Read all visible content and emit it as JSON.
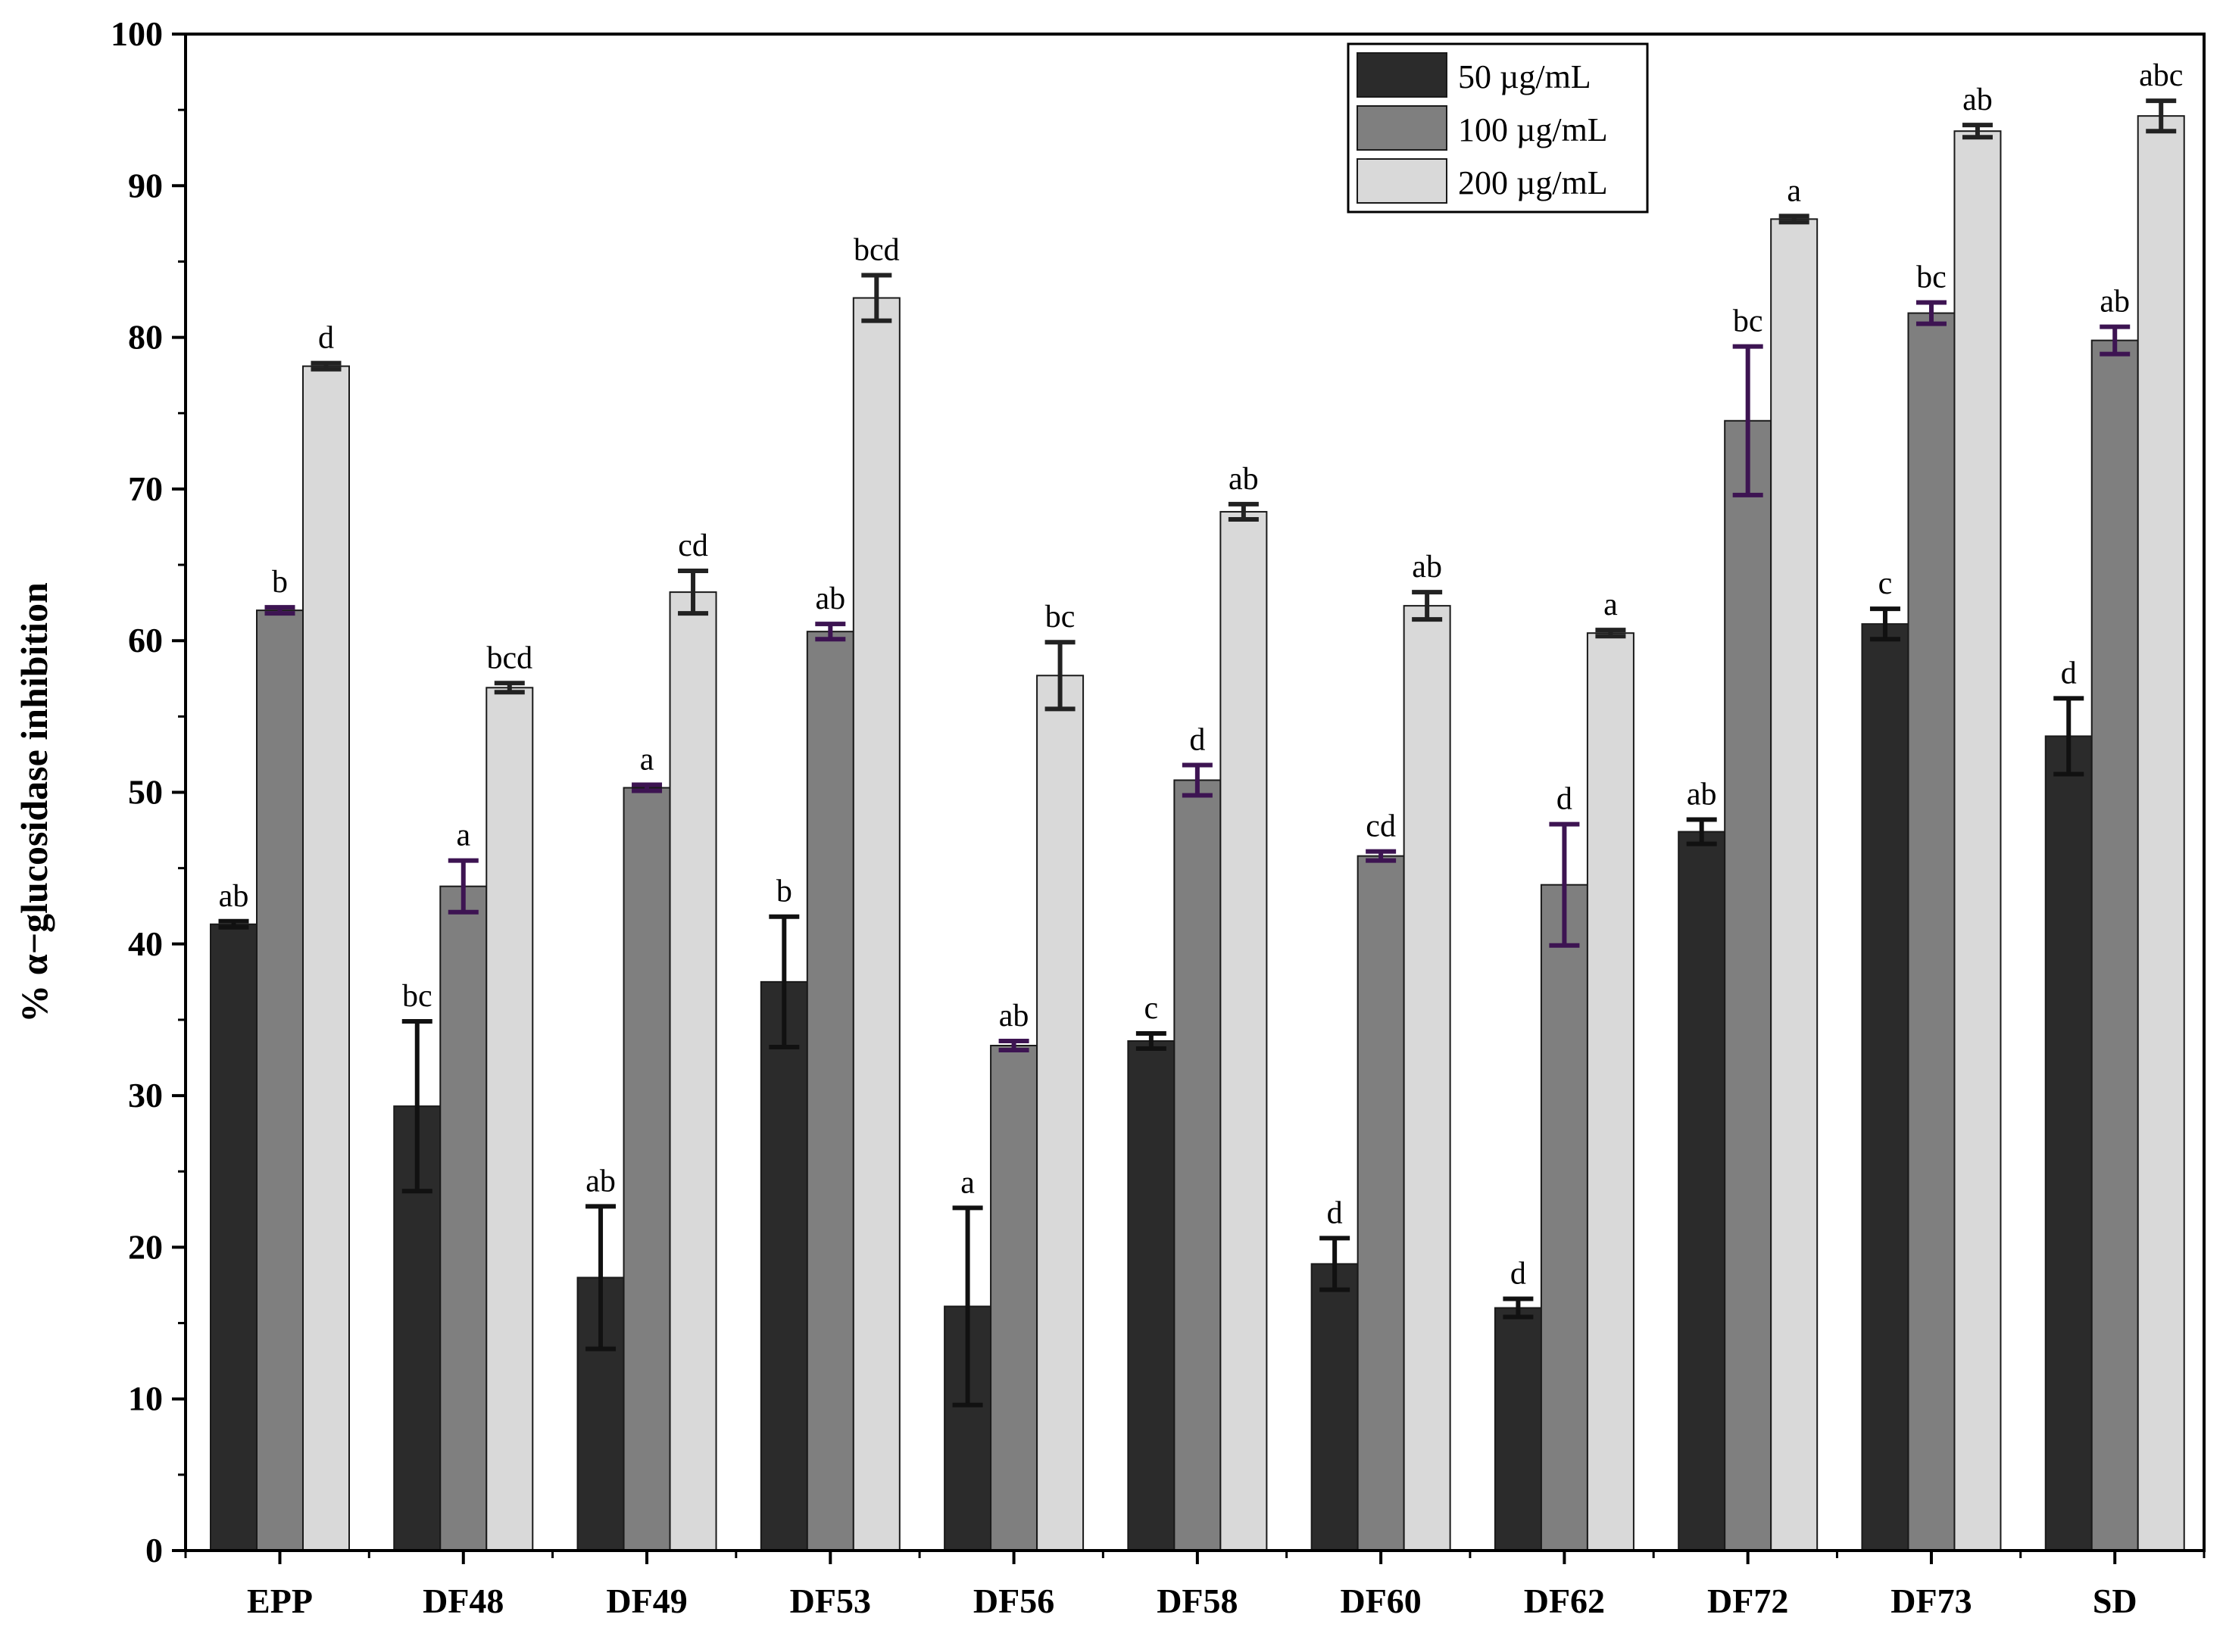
{
  "chart_data": {
    "type": "bar",
    "title": "",
    "xlabel": "",
    "ylabel": "% α−glucosidase inhibition",
    "ylim": [
      0,
      100
    ],
    "yticks": [
      0,
      10,
      20,
      30,
      40,
      50,
      60,
      70,
      80,
      90,
      100
    ],
    "grid": false,
    "legend_position": "top-right",
    "categories": [
      "EPP",
      "DF48",
      "DF49",
      "DF53",
      "DF56",
      "DF58",
      "DF60",
      "DF62",
      "DF72",
      "DF73",
      "SD"
    ],
    "series": [
      {
        "name": "50 µg/mL",
        "color": "#2b2b2b",
        "error_color": "#111111",
        "values": [
          41.3,
          29.3,
          18.0,
          37.5,
          16.1,
          33.6,
          18.9,
          16.0,
          47.4,
          61.1,
          53.7
        ],
        "errors": [
          0.2,
          5.6,
          4.7,
          4.3,
          6.5,
          0.5,
          1.7,
          0.6,
          0.8,
          1.0,
          2.5
        ],
        "letters": [
          "ab",
          "bc",
          "ab",
          "b",
          "a",
          "c",
          "d",
          "d",
          "ab",
          "c",
          "d"
        ]
      },
      {
        "name": "100 µg/mL",
        "color": "#7f7f7f",
        "error_color": "#3d1452",
        "values": [
          62.0,
          43.8,
          50.3,
          60.6,
          33.3,
          50.8,
          45.8,
          43.9,
          74.5,
          81.6,
          79.8
        ],
        "errors": [
          0.2,
          1.7,
          0.2,
          0.5,
          0.3,
          1.0,
          0.3,
          4.0,
          4.9,
          0.7,
          0.9
        ],
        "letters": [
          "b",
          "a",
          "a",
          "ab",
          "ab",
          "d",
          "cd",
          "d",
          "bc",
          "bc",
          "ab"
        ]
      },
      {
        "name": "200 µg/mL",
        "color": "#d9d9d9",
        "error_color": "#222222",
        "values": [
          78.1,
          56.9,
          63.2,
          82.6,
          57.7,
          68.5,
          62.3,
          60.5,
          87.8,
          93.6,
          94.6
        ],
        "errors": [
          0.2,
          0.3,
          1.4,
          1.5,
          2.2,
          0.5,
          0.9,
          0.2,
          0.2,
          0.4,
          1.0
        ],
        "letters": [
          "d",
          "bcd",
          "cd",
          "bcd",
          "bc",
          "ab",
          "ab",
          "a",
          "a",
          "ab",
          "abc"
        ]
      }
    ]
  }
}
